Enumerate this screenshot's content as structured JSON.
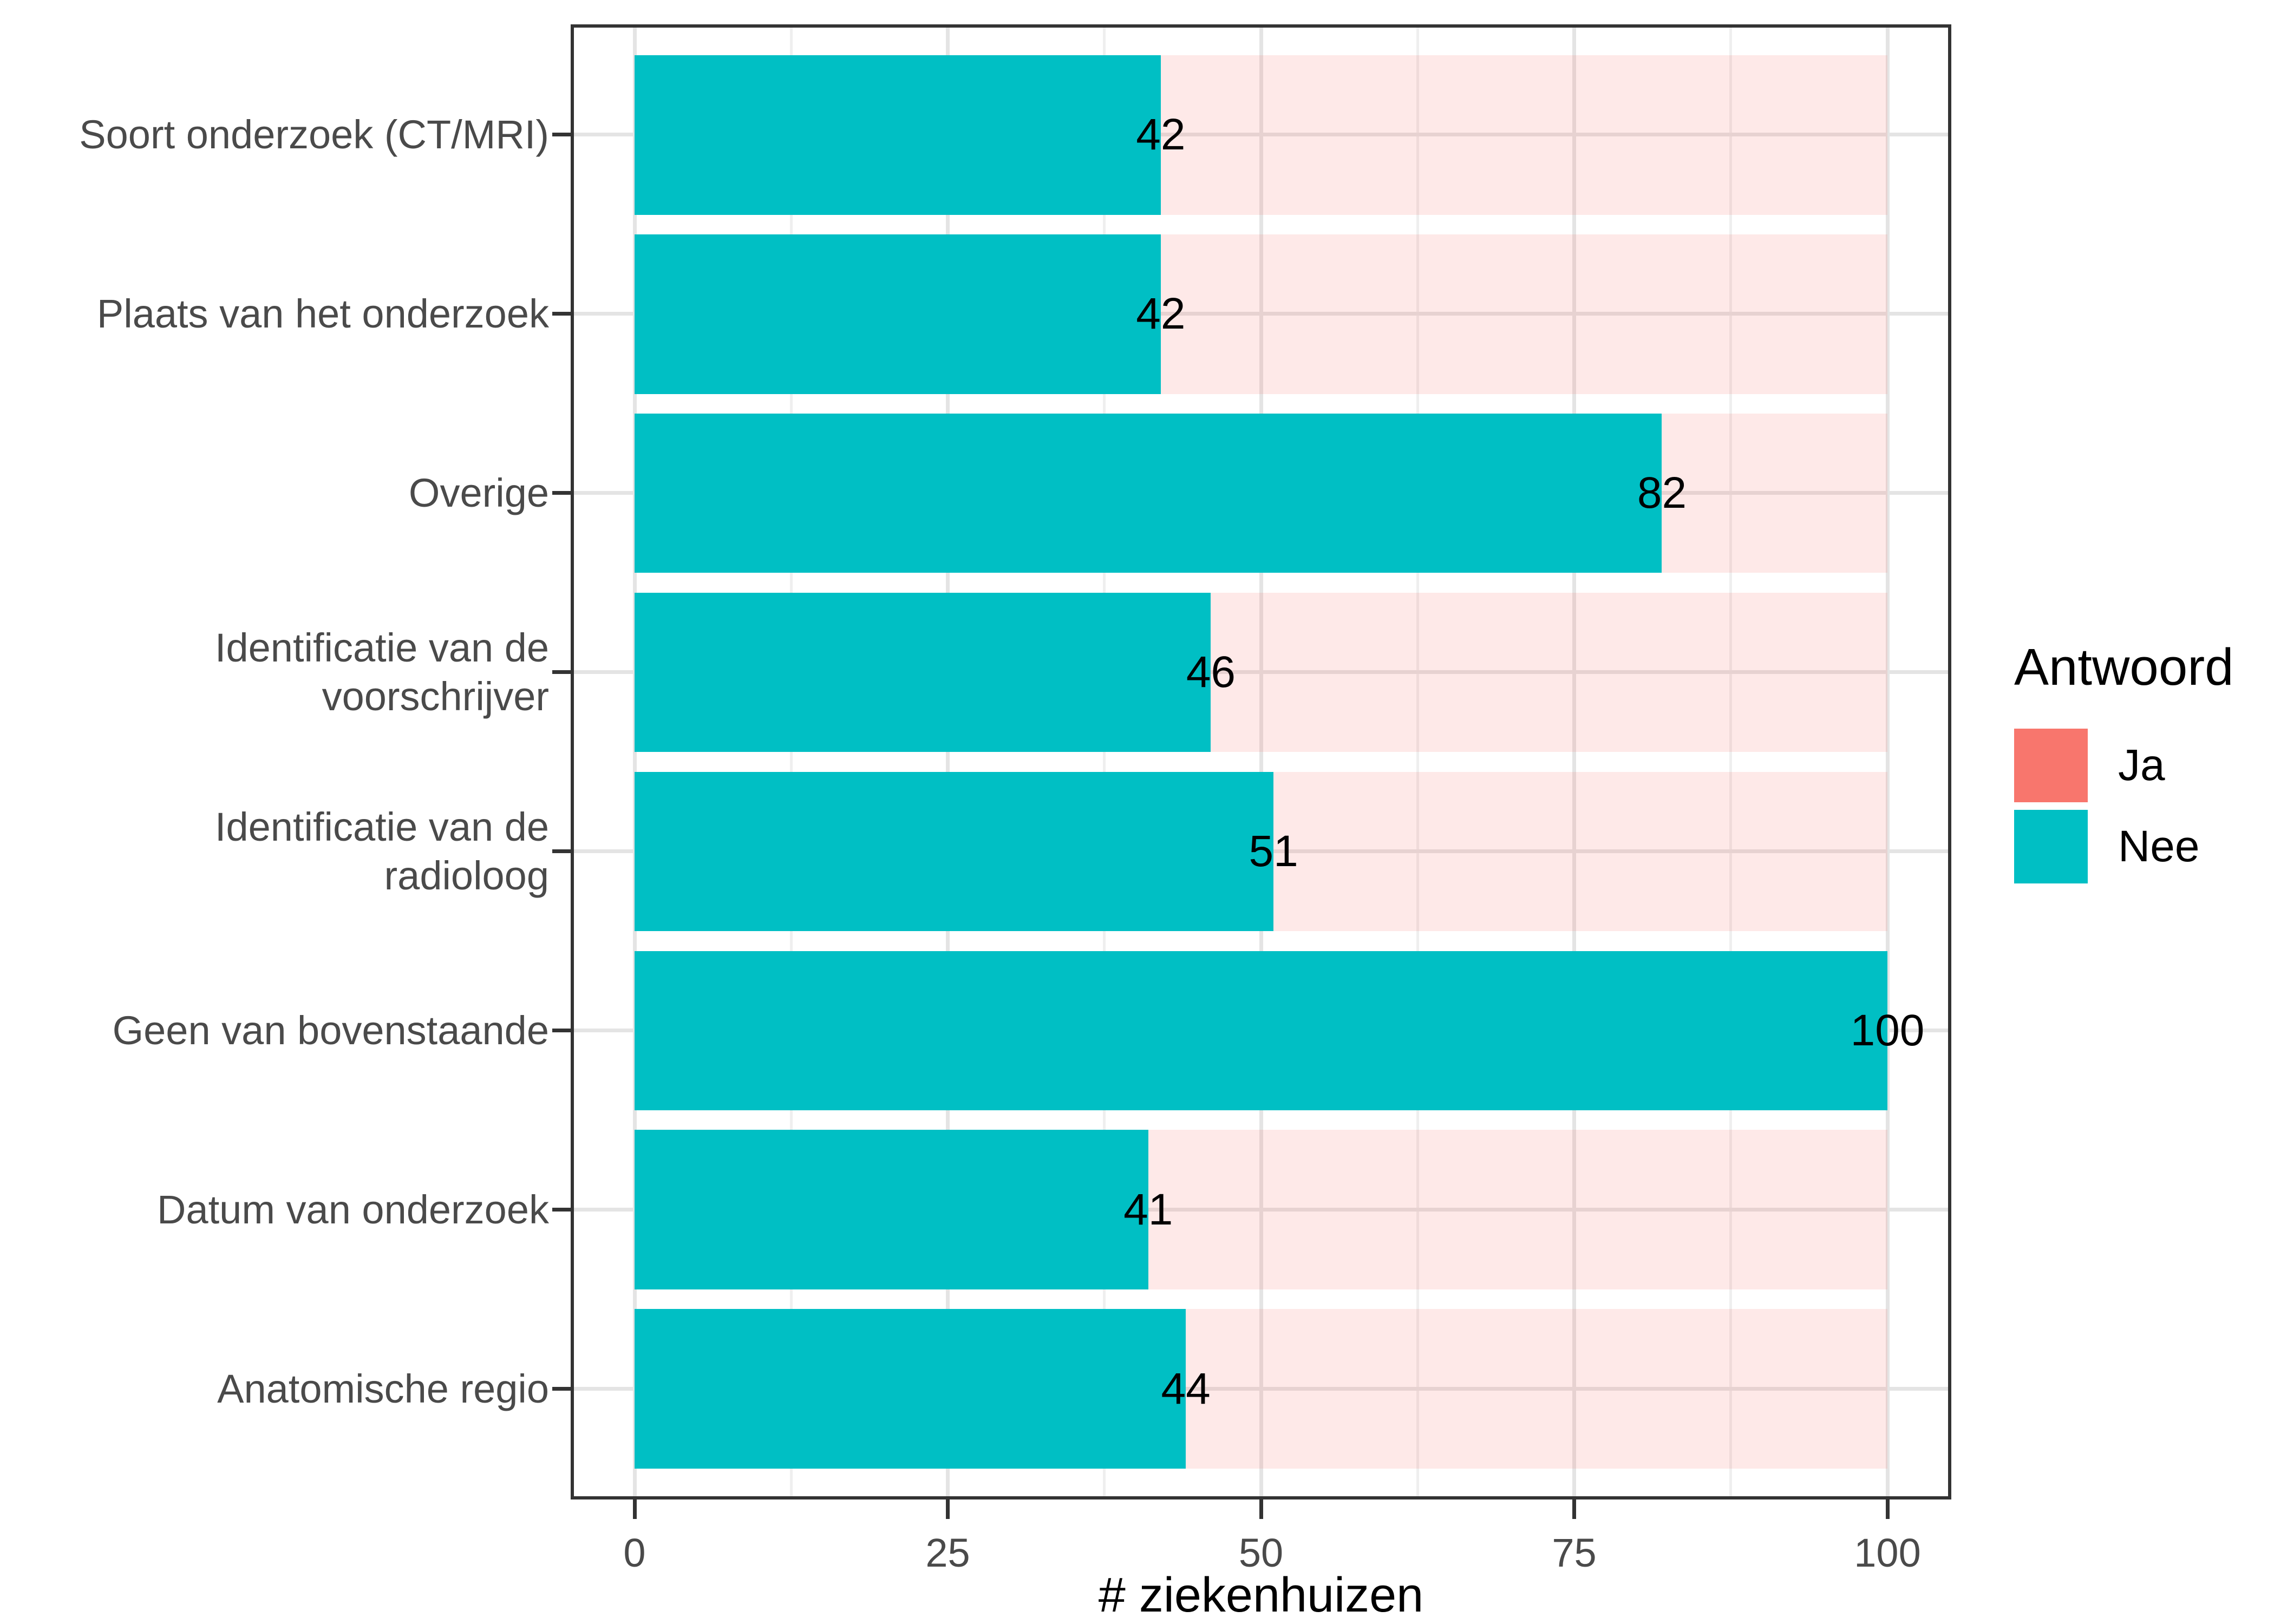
{
  "chart_data": {
    "type": "bar",
    "orientation": "horizontal",
    "stacked": true,
    "stacked_total": 100,
    "title": "",
    "xlabel": "# ziekenhuizen",
    "ylabel": "",
    "xlim": [
      0,
      100
    ],
    "x_ticks": [
      0,
      25,
      50,
      75,
      100
    ],
    "grid": "major and minor vertical, major horizontal",
    "categories": [
      {
        "label": "Soort onderzoek (CT/MRI)",
        "lines": [
          "Soort onderzoek (CT/MRI)"
        ]
      },
      {
        "label": "Plaats van het onderzoek",
        "lines": [
          "Plaats van het onderzoek"
        ]
      },
      {
        "label": "Overige",
        "lines": [
          "Overige"
        ]
      },
      {
        "label": "Identificatie van de voorschrijver",
        "lines": [
          "Identificatie van de",
          "voorschrijver"
        ]
      },
      {
        "label": "Identificatie van de radioloog",
        "lines": [
          "Identificatie van de",
          "radioloog"
        ]
      },
      {
        "label": "Geen van bovenstaande",
        "lines": [
          "Geen van bovenstaande"
        ]
      },
      {
        "label": "Datum van onderzoek",
        "lines": [
          "Datum van onderzoek"
        ]
      },
      {
        "label": "Anatomische regio",
        "lines": [
          "Anatomische regio"
        ]
      }
    ],
    "series": [
      {
        "name": "Ja",
        "color": "#F8766D",
        "bar_alpha": 0.16,
        "values": [
          58,
          58,
          18,
          54,
          49,
          0,
          59,
          56
        ]
      },
      {
        "name": "Nee",
        "color": "#00BFC4",
        "bar_alpha": 1,
        "values": [
          42,
          42,
          82,
          46,
          51,
          100,
          41,
          44
        ]
      }
    ],
    "bar_value_labels": [
      42,
      42,
      82,
      46,
      51,
      100,
      41,
      44
    ],
    "legend": {
      "title": "Antwoord",
      "position": "right",
      "items": [
        {
          "label": "Ja",
          "color": "#F8766D"
        },
        {
          "label": "Nee",
          "color": "#00BFC4"
        }
      ]
    },
    "colors": {
      "panel_border": "#333333",
      "grid_major": "#e4e4e4",
      "grid_minor": "#efefef",
      "axis_text": "#4a4a4a",
      "value_text": "#000000"
    }
  }
}
